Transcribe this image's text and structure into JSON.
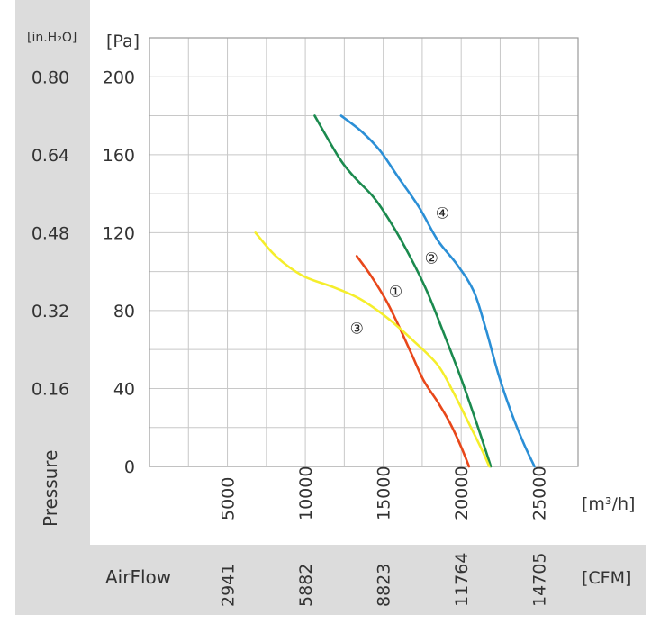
{
  "chart_data": {
    "type": "line",
    "xlabel": "AirFlow",
    "ylabel": "Pressure",
    "x_unit_primary": "[m³/h]",
    "x_unit_secondary": "[CFM]",
    "y_unit_primary": "[Pa]",
    "y_unit_secondary": "[in.H₂O]",
    "xlim": [
      0,
      27500
    ],
    "ylim": [
      0,
      220
    ],
    "x_ticks": [
      5000,
      10000,
      15000,
      20000,
      25000
    ],
    "x_tick_labels": [
      "5000",
      "10000",
      "15000",
      "20000",
      "25000"
    ],
    "x_secondary_tick_labels": [
      "2941",
      "5882",
      "8823",
      "11764",
      "14705"
    ],
    "y_ticks": [
      0,
      40,
      80,
      120,
      160,
      200
    ],
    "y_tick_labels": [
      "0",
      "40",
      "80",
      "120",
      "160",
      "200"
    ],
    "y_secondary_tick_labels": [
      "",
      "0.16",
      "0.32",
      "0.48",
      "0.64",
      "0.80"
    ],
    "grid": true,
    "series": [
      {
        "name": "①",
        "color": "#e8471a",
        "points": [
          [
            13300,
            108
          ],
          [
            14200,
            98
          ],
          [
            15200,
            85
          ],
          [
            16000,
            72
          ],
          [
            16800,
            58
          ],
          [
            17600,
            44
          ],
          [
            18500,
            33
          ],
          [
            19300,
            22
          ],
          [
            20000,
            10
          ],
          [
            20500,
            0
          ]
        ]
      },
      {
        "name": "②",
        "color": "#1b8a4e",
        "points": [
          [
            10600,
            180
          ],
          [
            12200,
            158
          ],
          [
            13200,
            148
          ],
          [
            14400,
            138
          ],
          [
            15500,
            125
          ],
          [
            16700,
            108
          ],
          [
            17800,
            90
          ],
          [
            18900,
            68
          ],
          [
            20000,
            45
          ],
          [
            21000,
            22
          ],
          [
            21700,
            5
          ],
          [
            21900,
            0
          ]
        ]
      },
      {
        "name": "③",
        "color": "#f5ee2c",
        "points": [
          [
            6800,
            120
          ],
          [
            8100,
            108
          ],
          [
            9800,
            98
          ],
          [
            11800,
            92
          ],
          [
            13500,
            86
          ],
          [
            15300,
            76
          ],
          [
            17000,
            64
          ],
          [
            18500,
            52
          ],
          [
            19500,
            38
          ],
          [
            20500,
            22
          ],
          [
            21300,
            9
          ],
          [
            21800,
            0
          ]
        ]
      },
      {
        "name": "④",
        "color": "#2b8fd6",
        "points": [
          [
            12300,
            180
          ],
          [
            13600,
            172
          ],
          [
            14800,
            162
          ],
          [
            16000,
            148
          ],
          [
            17300,
            133
          ],
          [
            18500,
            116
          ],
          [
            19700,
            104
          ],
          [
            20800,
            90
          ],
          [
            21600,
            70
          ],
          [
            22400,
            47
          ],
          [
            23200,
            28
          ],
          [
            24000,
            12
          ],
          [
            24700,
            0
          ]
        ]
      }
    ],
    "annotations": [
      {
        "text": "①",
        "x": 15800,
        "y": 90
      },
      {
        "text": "②",
        "x": 18100,
        "y": 107
      },
      {
        "text": "③",
        "x": 13300,
        "y": 71
      },
      {
        "text": "④",
        "x": 18800,
        "y": 130
      }
    ]
  }
}
